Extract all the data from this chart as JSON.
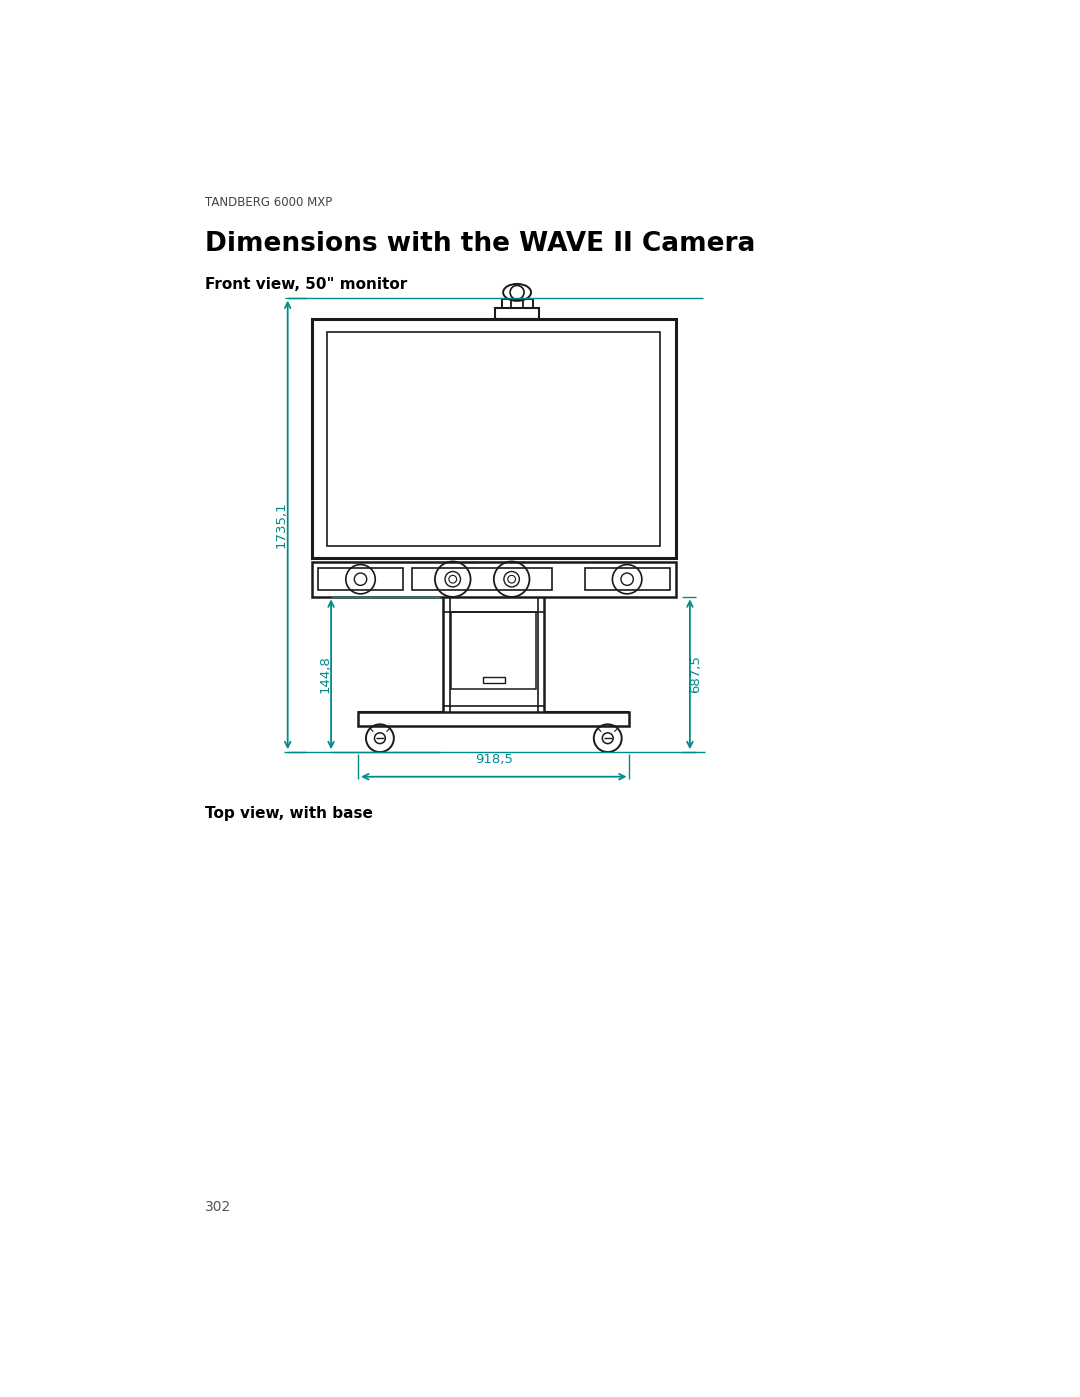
{
  "page_header": "TANDBERG 6000 MXP",
  "title": "Dimensions with the WAVE II Camera",
  "section1_label": "Front view, 50\" monitor",
  "section2_label": "Top view, with base",
  "page_number": "302",
  "dim_color": "#008B8B",
  "line_color": "#1a1a1a",
  "bg_color": "#ffffff",
  "dim_1735": "1735,1",
  "dim_144": "144,8",
  "dim_687": "687,5",
  "dim_918": "918,5"
}
